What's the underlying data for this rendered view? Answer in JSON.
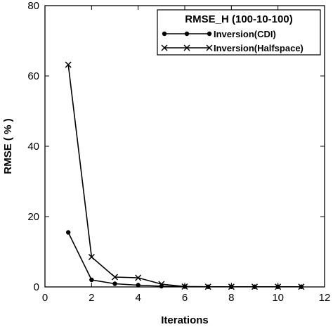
{
  "chart_data": {
    "type": "line",
    "xlabel": "Iterations",
    "ylabel": "RMSE ( % )",
    "xlim": [
      0,
      12
    ],
    "ylim": [
      0,
      80
    ],
    "x_ticks": [
      "0",
      "2",
      "4",
      "6",
      "8",
      "10",
      "12"
    ],
    "y_ticks": [
      "0",
      "20",
      "40",
      "60",
      "80"
    ],
    "grid": false,
    "legend": {
      "title": "RMSE_H (100-10-100)",
      "placement": "top-right"
    },
    "series": [
      {
        "name": "Inversion(CDI)",
        "marker": "dot",
        "x": [
          1,
          2,
          3,
          4,
          5,
          6,
          7,
          8,
          9,
          10,
          11
        ],
        "values": [
          15.5,
          2.0,
          0.9,
          0.5,
          0.2,
          0.1,
          0.05,
          0.05,
          0.05,
          0.05,
          0.05
        ]
      },
      {
        "name": "Inversion(Halfspace)",
        "marker": "cross",
        "x": [
          1,
          2,
          3,
          4,
          5,
          6,
          7,
          8,
          9,
          10,
          11
        ],
        "values": [
          63.2,
          8.5,
          2.8,
          2.6,
          0.8,
          0.1,
          0.05,
          0.05,
          0.05,
          0.05,
          0.05
        ]
      }
    ]
  }
}
